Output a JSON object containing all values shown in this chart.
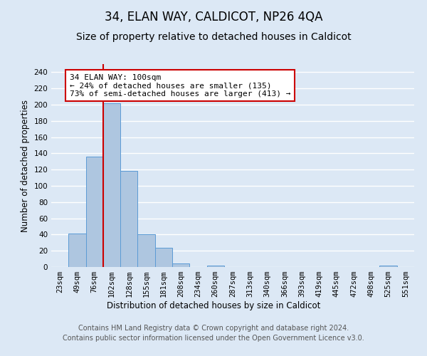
{
  "title": "34, ELAN WAY, CALDICOT, NP26 4QA",
  "subtitle": "Size of property relative to detached houses in Caldicot",
  "xlabel": "Distribution of detached houses by size in Caldicot",
  "ylabel": "Number of detached properties",
  "footer_line1": "Contains HM Land Registry data © Crown copyright and database right 2024.",
  "footer_line2": "Contains public sector information licensed under the Open Government Licence v3.0.",
  "bin_labels": [
    "23sqm",
    "49sqm",
    "76sqm",
    "102sqm",
    "128sqm",
    "155sqm",
    "181sqm",
    "208sqm",
    "234sqm",
    "260sqm",
    "287sqm",
    "313sqm",
    "340sqm",
    "366sqm",
    "393sqm",
    "419sqm",
    "445sqm",
    "472sqm",
    "498sqm",
    "525sqm",
    "551sqm"
  ],
  "bar_values": [
    0,
    41,
    136,
    202,
    118,
    40,
    24,
    4,
    0,
    2,
    0,
    0,
    0,
    0,
    0,
    0,
    0,
    0,
    0,
    2,
    0
  ],
  "bar_color": "#aec6e0",
  "bar_edge_color": "#5b9bd5",
  "vline_x_index": 2,
  "vline_color": "#cc0000",
  "annotation_text": "34 ELAN WAY: 100sqm\n← 24% of detached houses are smaller (135)\n73% of semi-detached houses are larger (413) →",
  "annotation_box_color": "#ffffff",
  "annotation_box_edge": "#cc0000",
  "ylim": [
    0,
    250
  ],
  "yticks": [
    0,
    20,
    40,
    60,
    80,
    100,
    120,
    140,
    160,
    180,
    200,
    220,
    240
  ],
  "background_color": "#dce8f5",
  "grid_color": "#ffffff",
  "title_fontsize": 12,
  "subtitle_fontsize": 10,
  "axis_label_fontsize": 8.5,
  "tick_fontsize": 7.5,
  "footer_fontsize": 7
}
